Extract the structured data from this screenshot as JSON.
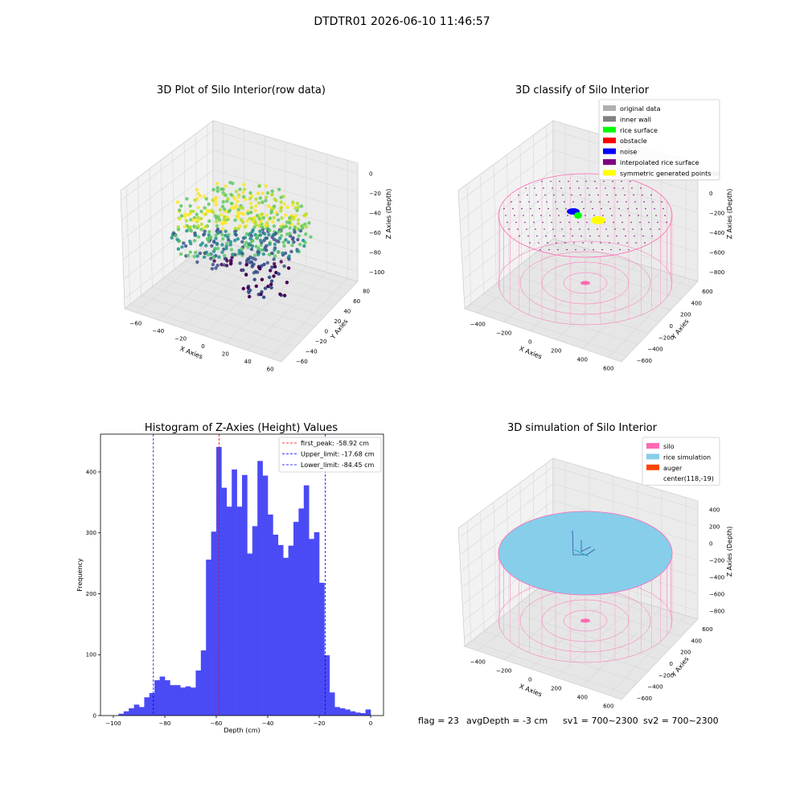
{
  "figure": {
    "suptitle": "DTDTR01 2026-06-10 11:46:57",
    "footer": {
      "flag": "flag = 23",
      "avg_depth": "avgDepth = -3 cm",
      "sv1": "sv1 = 700~2300",
      "sv2": "sv2 = 700~2300"
    }
  },
  "panels": {
    "raw": {
      "title": "3D Plot of Silo Interior(row data)",
      "xlabel": "X Axies",
      "ylabel": "Y Axies",
      "zlabel": "Z Axies (Depth)",
      "xticks": [
        "−60",
        "−40",
        "−20",
        "0",
        "20",
        "40",
        "60"
      ],
      "yticks": [
        "−60",
        "−40",
        "−20",
        "0",
        "20",
        "40",
        "60",
        "80"
      ],
      "zticks": [
        "0",
        "−20",
        "−40",
        "−60",
        "−80",
        "−100"
      ]
    },
    "classify": {
      "title": "3D classify of Silo Interior",
      "xlabel": "X Axies",
      "ylabel": "Y Axies",
      "zlabel": "Z Axies (Depth)",
      "xticks": [
        "−400",
        "−200",
        "0",
        "200",
        "400",
        "600"
      ],
      "yticks": [
        "−600",
        "−400",
        "−200",
        "0",
        "200",
        "400",
        "600"
      ],
      "zticks": [
        "200",
        "0",
        "−200",
        "−400",
        "−600",
        "−800"
      ],
      "legend": [
        {
          "label": "original data",
          "color": "#b0b0b0"
        },
        {
          "label": "inner wall",
          "color": "#808080"
        },
        {
          "label": "rice surface",
          "color": "#00ff00"
        },
        {
          "label": "obstacle",
          "color": "#ff0000"
        },
        {
          "label": "noise",
          "color": "#0000ff"
        },
        {
          "label": "interpolated rice surface",
          "color": "#800080"
        },
        {
          "label": "symmetric generated points",
          "color": "#ffff00"
        }
      ]
    },
    "simulation": {
      "title": "3D simulation of Silo Interior",
      "xlabel": "X Axies",
      "ylabel": "Y Axies",
      "zlabel": "Z Axies (Depth)",
      "xticks": [
        "−400",
        "−200",
        "0",
        "200",
        "400",
        "600"
      ],
      "yticks": [
        "−600",
        "−400",
        "−200",
        "0",
        "200",
        "400",
        "600"
      ],
      "zticks": [
        "400",
        "200",
        "0",
        "−200",
        "−400",
        "−600",
        "−800"
      ],
      "legend": [
        {
          "label": "silo",
          "color": "#ff69b4"
        },
        {
          "label": "rice simulation",
          "color": "#87ceeb"
        },
        {
          "label": "auger",
          "color": "#ff4500"
        },
        {
          "label": "center(118,-19)",
          "color": ""
        }
      ]
    }
  },
  "chart_data": [
    {
      "type": "bar",
      "title": "Histogram of Z-Axies (Height) Values",
      "xlabel": "Depth (cm)",
      "ylabel": "Frequency",
      "xlim": [
        -105,
        5
      ],
      "ylim": [
        0,
        462
      ],
      "bin_start": -100,
      "bin_width": 2,
      "values": [
        0,
        3,
        7,
        12,
        18,
        14,
        30,
        37,
        58,
        64,
        58,
        50,
        50,
        46,
        48,
        46,
        74,
        107,
        256,
        302,
        441,
        374,
        343,
        404,
        343,
        395,
        266,
        311,
        418,
        394,
        330,
        297,
        280,
        259,
        279,
        318,
        340,
        378,
        290,
        301,
        218,
        99,
        38,
        14,
        12,
        10,
        7,
        5,
        4,
        10
      ],
      "xticks": [
        "−100",
        "−80",
        "−60",
        "−40",
        "−20",
        "0"
      ],
      "yticks": [
        "0",
        "100",
        "200",
        "300",
        "400"
      ],
      "bar_color": "#4b4bf5",
      "lines": [
        {
          "label": "first_peak: -58.92 cm",
          "value": -58.92,
          "color": "#ff0000"
        },
        {
          "label": "Upper_limit: -17.68 cm",
          "value": -17.68,
          "color": "#0000ff"
        },
        {
          "label": "Lower_limit: -84.45 cm",
          "value": -84.45,
          "color": "#0000ff"
        }
      ]
    }
  ]
}
